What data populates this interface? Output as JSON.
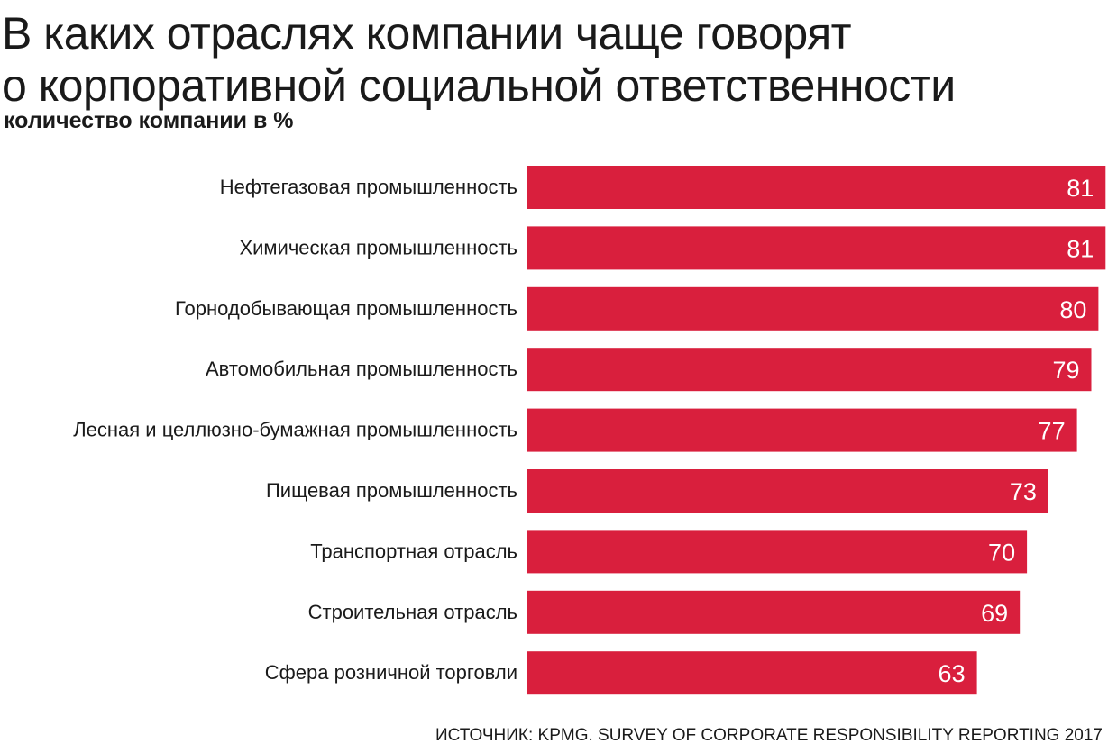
{
  "header": {
    "title_line1": "В каких отраслях компании чаще говорят",
    "title_line2": "о корпоративной  социальной ответственности",
    "subtitle": "количество компании в %"
  },
  "chart_data": {
    "type": "bar",
    "orientation": "horizontal",
    "title": "В каких отраслях компании чаще говорят о корпоративной  социальной ответственности",
    "subtitle": "количество компании в %",
    "categories": [
      "Нефтегазовая промышленность",
      "Химическая промышленность",
      "Горнодобывающая промышленность",
      "Автомобильная промышленность",
      "Лесная и целлюзно-бумажная промышленность",
      "Пищевая промышленность",
      "Транспортная отрасль",
      "Строительная отрасль",
      "Сфера розничной торговли"
    ],
    "values": [
      81,
      81,
      80,
      79,
      77,
      73,
      70,
      69,
      63
    ],
    "data_labels": [
      "81",
      "81",
      "80",
      "79",
      "77",
      "73",
      "70",
      "69",
      "63"
    ],
    "grid": false,
    "legend": "none",
    "bar_color": "#d91f3d",
    "label_color": "#ffffff"
  },
  "footer": {
    "source": "ИСТОЧНИК: KPMG. SURVEY OF CORPORATE RESPONSIBILITY REPORTING 2017"
  }
}
